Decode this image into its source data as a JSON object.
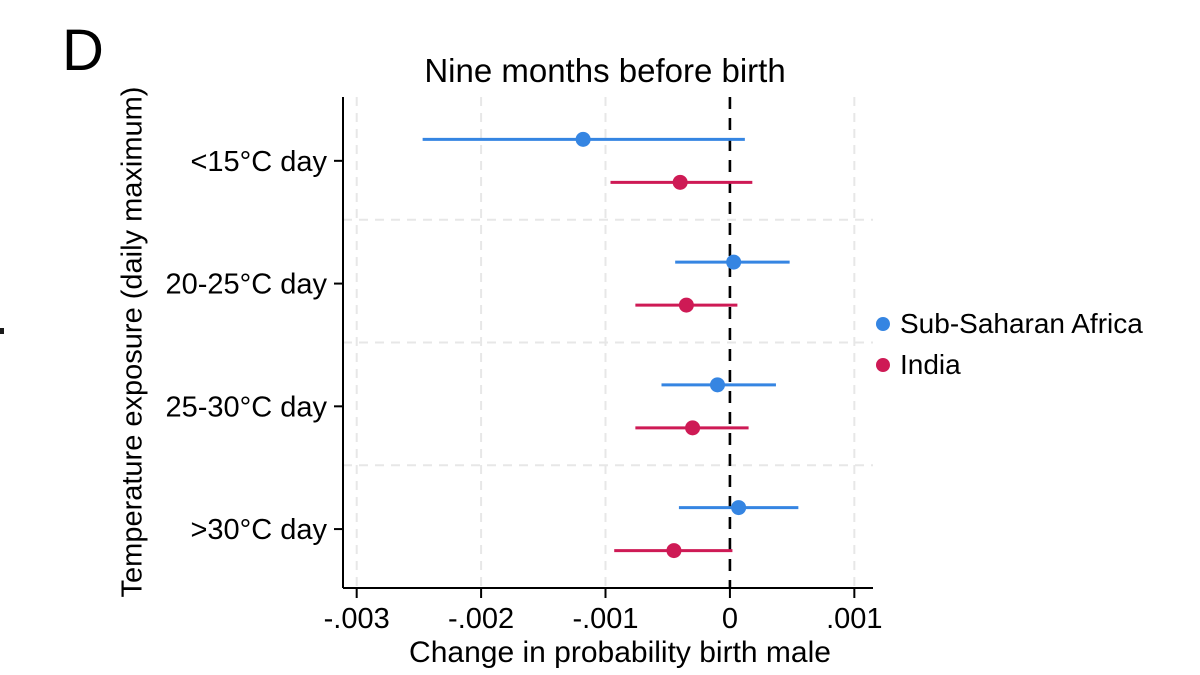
{
  "figure": {
    "panel_label": "D"
  },
  "chart_data": {
    "type": "scatter",
    "subtype": "coefficient-dot-whisker",
    "title": "Nine months before birth",
    "xlabel": "Change in probability birth male",
    "ylabel": "Temperature exposure (daily maximum)",
    "categories": [
      "<15°C day",
      "20-25°C day",
      "25-30°C day",
      ">30°C day"
    ],
    "x_ticks": [
      {
        "value": -0.003,
        "label": "-.003"
      },
      {
        "value": -0.002,
        "label": "-.002"
      },
      {
        "value": -0.001,
        "label": "-.001"
      },
      {
        "value": 0,
        "label": "0"
      },
      {
        "value": 0.001,
        "label": ".001"
      }
    ],
    "xlim": [
      -0.00311,
      0.00115
    ],
    "zero_reference_line": 0,
    "grid": true,
    "legend_position": "right",
    "colors": {
      "axis": "#000000",
      "grid": "#e7e7e7",
      "zero_line": "#000000"
    },
    "series": [
      {
        "name": "Sub-Saharan Africa",
        "color": "#3585e2",
        "points": [
          {
            "category": "<15°C day",
            "estimate": -0.00118,
            "ci_low": -0.00247,
            "ci_high": 0.00012
          },
          {
            "category": "20-25°C day",
            "estimate": 3e-05,
            "ci_low": -0.00044,
            "ci_high": 0.00048
          },
          {
            "category": "25-30°C day",
            "estimate": -0.0001,
            "ci_low": -0.00055,
            "ci_high": 0.00037
          },
          {
            "category": ">30°C day",
            "estimate": 7e-05,
            "ci_low": -0.00041,
            "ci_high": 0.00055
          }
        ]
      },
      {
        "name": "India",
        "color": "#ce1a55",
        "points": [
          {
            "category": "<15°C day",
            "estimate": -0.0004,
            "ci_low": -0.00096,
            "ci_high": 0.00018
          },
          {
            "category": "20-25°C day",
            "estimate": -0.00035,
            "ci_low": -0.00076,
            "ci_high": 6e-05
          },
          {
            "category": "25-30°C day",
            "estimate": -0.0003,
            "ci_low": -0.00076,
            "ci_high": 0.00015
          },
          {
            "category": ">30°C day",
            "estimate": -0.00045,
            "ci_low": -0.00093,
            "ci_high": 2e-05
          }
        ]
      }
    ]
  }
}
